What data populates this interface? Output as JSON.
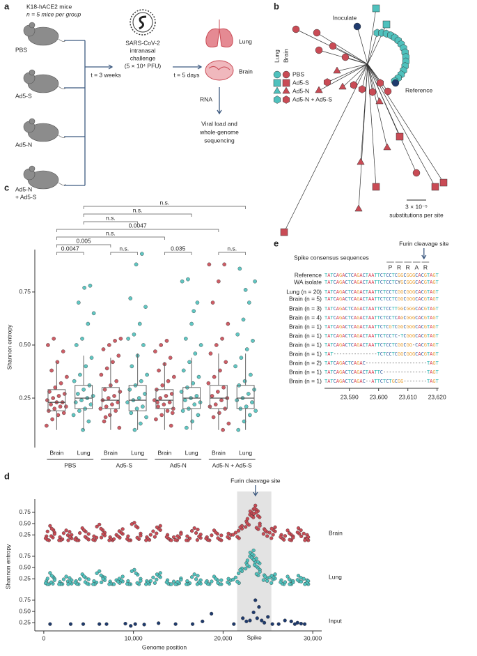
{
  "panel_a": {
    "label": "a",
    "cohort": [
      "K18-hACE2 mice",
      "n = 5 mice per group"
    ],
    "groups": [
      "PBS",
      "Ad5-S",
      "Ad5-N"
    ],
    "group_4": [
      "Ad5-N",
      "+ Ad5-S"
    ],
    "interval_1": "t = 3 weeks",
    "challenge": [
      "SARS-CoV-2",
      "intranasal",
      "challenge",
      "(5 × 10⁴ PFU)"
    ],
    "interval_2": "t = 5 days",
    "organs": [
      "Lung",
      "Brain"
    ],
    "step": "RNA",
    "readout": [
      "Viral load and",
      "whole-genome",
      "sequencing"
    ]
  },
  "panel_b": {
    "label": "b",
    "inoculate": "Inoculate",
    "reference": "Reference",
    "legend_columns": [
      "Lung",
      "Brain"
    ],
    "legend": [
      "PBS",
      "Ad5-S",
      "Ad5-N",
      "Ad5-N + Ad5-S"
    ],
    "scale": [
      "3 × 10⁻⁵",
      "substitutions per site"
    ]
  },
  "chart_data": [
    {
      "type": "box",
      "label": "c",
      "ylabel": "Shannon entropy",
      "categories": [
        "Brain",
        "Lung",
        "Brain",
        "Lung",
        "Brain",
        "Lung",
        "Brain",
        "Lung"
      ],
      "groups": [
        "PBS",
        "Ad5-S",
        "Ad5-N",
        "Ad5-N + Ad5-S"
      ],
      "colors": [
        "#c94b55",
        "#4fc1bd",
        "#c94b55",
        "#4fc1bd",
        "#c94b55",
        "#4fc1bd",
        "#c94b55",
        "#4fc1bd"
      ],
      "ylim": [
        0.03,
        0.95
      ],
      "yticks": [
        0.25,
        {
          "value": 0.5,
          "label": "0.50"
        },
        0.75
      ],
      "comparisons": [
        "n.s.",
        "n.s.",
        "n.s.",
        "0.0047",
        "n.s.",
        "0.005",
        "0.0047",
        "n.s.",
        "0.035",
        "n.s."
      ],
      "boxes": [
        {
          "whislo": 0.1,
          "q1": 0.19,
          "med": 0.23,
          "q3": 0.29,
          "whishi": 0.42
        },
        {
          "whislo": 0.1,
          "q1": 0.2,
          "med": 0.25,
          "q3": 0.31,
          "whishi": 0.45
        },
        {
          "whislo": 0.1,
          "q1": 0.2,
          "med": 0.24,
          "q3": 0.3,
          "whishi": 0.44
        },
        {
          "whislo": 0.1,
          "q1": 0.19,
          "med": 0.24,
          "q3": 0.31,
          "whishi": 0.46
        },
        {
          "whislo": 0.1,
          "q1": 0.2,
          "med": 0.24,
          "q3": 0.29,
          "whishi": 0.42
        },
        {
          "whislo": 0.1,
          "q1": 0.2,
          "med": 0.25,
          "q3": 0.3,
          "whishi": 0.44
        },
        {
          "whislo": 0.1,
          "q1": 0.2,
          "med": 0.25,
          "q3": 0.31,
          "whishi": 0.46
        },
        {
          "whislo": 0.1,
          "q1": 0.2,
          "med": 0.25,
          "q3": 0.31,
          "whishi": 0.46
        }
      ],
      "points": [
        [
          0.12,
          0.15,
          0.17,
          0.18,
          0.19,
          0.2,
          0.21,
          0.21,
          0.22,
          0.23,
          0.23,
          0.24,
          0.25,
          0.26,
          0.27,
          0.28,
          0.3,
          0.32,
          0.35,
          0.38,
          0.42,
          0.47,
          0.5,
          0.53
        ],
        [
          0.1,
          0.14,
          0.17,
          0.19,
          0.2,
          0.22,
          0.23,
          0.24,
          0.25,
          0.26,
          0.27,
          0.29,
          0.31,
          0.33,
          0.36,
          0.4,
          0.44,
          0.5,
          0.53,
          0.6,
          0.65,
          0.7,
          0.77,
          0.78
        ],
        [
          0.11,
          0.14,
          0.17,
          0.19,
          0.2,
          0.21,
          0.22,
          0.23,
          0.24,
          0.25,
          0.26,
          0.28,
          0.29,
          0.31,
          0.33,
          0.36,
          0.39,
          0.42,
          0.45,
          0.48,
          0.5,
          0.52,
          0.53,
          0.16
        ],
        [
          0.1,
          0.13,
          0.16,
          0.18,
          0.2,
          0.21,
          0.23,
          0.24,
          0.25,
          0.27,
          0.29,
          0.31,
          0.33,
          0.36,
          0.4,
          0.45,
          0.5,
          0.53,
          0.55,
          0.6,
          0.68,
          0.72,
          0.88,
          0.93
        ],
        [
          0.12,
          0.15,
          0.17,
          0.19,
          0.2,
          0.21,
          0.22,
          0.23,
          0.24,
          0.25,
          0.26,
          0.27,
          0.29,
          0.31,
          0.33,
          0.35,
          0.38,
          0.41,
          0.44,
          0.47,
          0.5,
          0.52,
          0.18,
          0.23
        ],
        [
          0.11,
          0.14,
          0.17,
          0.19,
          0.2,
          0.22,
          0.23,
          0.24,
          0.25,
          0.26,
          0.28,
          0.3,
          0.32,
          0.35,
          0.38,
          0.42,
          0.46,
          0.5,
          0.53,
          0.6,
          0.7,
          0.8,
          0.81,
          0.66
        ],
        [
          0.1,
          0.13,
          0.16,
          0.18,
          0.2,
          0.21,
          0.22,
          0.24,
          0.25,
          0.26,
          0.28,
          0.3,
          0.32,
          0.35,
          0.38,
          0.42,
          0.46,
          0.5,
          0.53,
          0.6,
          0.7,
          0.8,
          0.88,
          0.88
        ],
        [
          0.1,
          0.14,
          0.17,
          0.19,
          0.2,
          0.21,
          0.23,
          0.24,
          0.25,
          0.27,
          0.29,
          0.31,
          0.33,
          0.36,
          0.4,
          0.44,
          0.48,
          0.52,
          0.55,
          0.62,
          0.7,
          0.8,
          0.86,
          0.76
        ]
      ]
    },
    {
      "type": "scatter",
      "label": "d",
      "xlabel": "Genome position",
      "ylabel": "Shannon entropy",
      "annotation": "Furin cleavage site",
      "annotation_x": 23610,
      "highlight": {
        "label": "Spike",
        "range": [
          21563,
          25384
        ]
      },
      "xlim": [
        -1000,
        31000
      ],
      "xticks": [
        0,
        {
          "value": 10000,
          "label": "10,000"
        },
        {
          "value": 20000,
          "label": "20,000"
        },
        {
          "value": 30000,
          "label": "30,000"
        }
      ],
      "tracks": [
        {
          "name": "Brain",
          "color": "#c94b55",
          "ylim": [
            0.1,
            0.95
          ],
          "yticks": [
            0.25,
            {
              "value": 0.5,
              "label": "0.50"
            },
            0.75
          ],
          "x": [
            300,
            700,
            1200,
            1800,
            2500,
            3100,
            3600,
            4300,
            5000,
            5600,
            6200,
            6800,
            7400,
            8100,
            8800,
            9400,
            10100,
            10800,
            11500,
            12200,
            13000,
            13800,
            14500,
            15300,
            16000,
            16800,
            17500,
            18200,
            19000,
            19800,
            20600,
            21400,
            22100,
            22600,
            23000,
            23400,
            23600,
            23700,
            24100,
            24600,
            25200,
            25800,
            26500,
            27200,
            27800,
            28400,
            29000,
            29500
          ],
          "y": [
            0.22,
            0.45,
            0.3,
            0.2,
            0.35,
            0.25,
            0.18,
            0.4,
            0.27,
            0.22,
            0.48,
            0.3,
            0.2,
            0.25,
            0.38,
            0.22,
            0.52,
            0.28,
            0.2,
            0.33,
            0.45,
            0.25,
            0.2,
            0.3,
            0.22,
            0.4,
            0.26,
            0.2,
            0.35,
            0.24,
            0.28,
            0.3,
            0.45,
            0.55,
            0.7,
            0.82,
            0.9,
            0.75,
            0.5,
            0.38,
            0.3,
            0.42,
            0.25,
            0.35,
            0.22,
            0.4,
            0.28,
            0.2
          ]
        },
        {
          "name": "Lung",
          "color": "#4fc1bd",
          "ylim": [
            0.1,
            0.95
          ],
          "yticks": [
            0.25,
            {
              "value": 0.5,
              "label": "0.50"
            },
            0.75
          ],
          "x": [
            300,
            700,
            1200,
            1800,
            2500,
            3100,
            3600,
            4300,
            5000,
            5600,
            6200,
            6800,
            7400,
            8100,
            8800,
            9400,
            10100,
            10800,
            11500,
            12200,
            13000,
            13800,
            14500,
            15300,
            16000,
            16800,
            17500,
            18200,
            19000,
            19800,
            20600,
            21400,
            22100,
            22600,
            23000,
            23400,
            23600,
            23700,
            24100,
            24600,
            25200,
            25800,
            26500,
            27200,
            27800,
            28400,
            29000,
            29500
          ],
          "y": [
            0.2,
            0.38,
            0.25,
            0.18,
            0.3,
            0.22,
            0.2,
            0.35,
            0.24,
            0.2,
            0.42,
            0.28,
            0.19,
            0.22,
            0.3,
            0.2,
            0.45,
            0.25,
            0.2,
            0.28,
            0.38,
            0.22,
            0.19,
            0.26,
            0.2,
            0.35,
            0.22,
            0.2,
            0.3,
            0.22,
            0.25,
            0.28,
            0.48,
            0.6,
            0.75,
            0.88,
            0.62,
            0.7,
            0.45,
            0.33,
            0.28,
            0.35,
            0.22,
            0.3,
            0.2,
            0.32,
            0.25,
            0.2
          ]
        },
        {
          "name": "Input",
          "color": "#1f3b6e",
          "ylim": [
            0.1,
            0.95
          ],
          "yticks": [
            0.25,
            {
              "value": 0.5,
              "label": "0.50"
            },
            0.75
          ],
          "x": [
            700,
            3000,
            4400,
            6200,
            7000,
            9100,
            9700,
            10200,
            11200,
            12800,
            14700,
            16600,
            17700,
            18700,
            21200,
            22200,
            22600,
            23000,
            23400,
            23600,
            23800,
            24000,
            24300,
            24600,
            25000,
            25500,
            26200,
            26900,
            27600,
            28000,
            28300,
            28700,
            29100
          ],
          "y": [
            0.22,
            0.22,
            0.22,
            0.22,
            0.22,
            0.23,
            0.18,
            0.22,
            0.21,
            0.24,
            0.22,
            0.22,
            0.28,
            0.45,
            0.22,
            0.35,
            0.28,
            0.3,
            0.48,
            0.75,
            0.35,
            0.6,
            0.3,
            0.25,
            0.38,
            0.22,
            0.22,
            0.3,
            0.28,
            0.22,
            0.25,
            0.23,
            0.22
          ]
        }
      ]
    }
  ],
  "panel_e": {
    "label": "e",
    "title": "Spike consensus sequences",
    "annotation": "Furin cleavage site",
    "amino_acids": [
      "P",
      "R",
      "R",
      "A",
      "R"
    ],
    "rows": [
      {
        "name": "Reference",
        "sequence": "TATCAGACTCAGACTAATTCTCCTCGGCGGGCACGTAGT"
      },
      {
        "name": "WA isolate",
        "sequence": "TATCAGACTCAGACTAATTCTCCTCYGCGGGCACGTAGT"
      },
      {
        "name": "Lung (n = 20)",
        "sequence": "TATCAGACTCAGACTAATTCTCCTCGGCGGGCACGTAGT"
      },
      {
        "name": "Brain (n = 5)",
        "sequence": "TATCAGACTCAGACTAATTCTCCTCGGCGGGCACGTAGT"
      },
      {
        "name": "Brain (n = 3)",
        "sequence": "TATCAGACTCAGACTAATTCTCCTTGGCGGGCACGTAGT"
      },
      {
        "name": "Brain (n = 4)",
        "sequence": "TATCAGACTCAGACTAATTCTCCTCAGCGGGCACGTAGT"
      },
      {
        "name": "Brain (n = 1)",
        "sequence": "TATCAGACTCAGACTAATTCTCGTCGGCGGGCACGTAGT"
      },
      {
        "name": "Brain (n = 1)",
        "sequence": "TATCAGACTCAGACTAATTCTCCTC-TCGGGCACGTAGT"
      },
      {
        "name": "Brain (n = 1)",
        "sequence": "TATCAGACTCAGACTAATTCTCCTCGGCGG-CACGTAGT"
      },
      {
        "name": "Brain (n = 1)",
        "sequence": "TAT---------------TCTCCTCGGCGGGCACGTAGT"
      },
      {
        "name": "Brain (n = 2)",
        "sequence": "TATCAGACTCAGAC---------------------TAGT"
      },
      {
        "name": "Brain (n = 1)",
        "sequence": "TATCAGACTCAGACTAATTC---------------TAGT"
      },
      {
        "name": "Brain (n = 1)",
        "sequence": "TATCAGACTCAGAC--ATTCTCTGCGG--------TAGT"
      }
    ],
    "xticks": [
      {
        "value": 23590,
        "label": "23,590"
      },
      {
        "value": 23600,
        "label": "23,600"
      },
      {
        "value": 23610,
        "label": "23,610"
      },
      {
        "value": 23620,
        "label": "23,620"
      }
    ]
  }
}
